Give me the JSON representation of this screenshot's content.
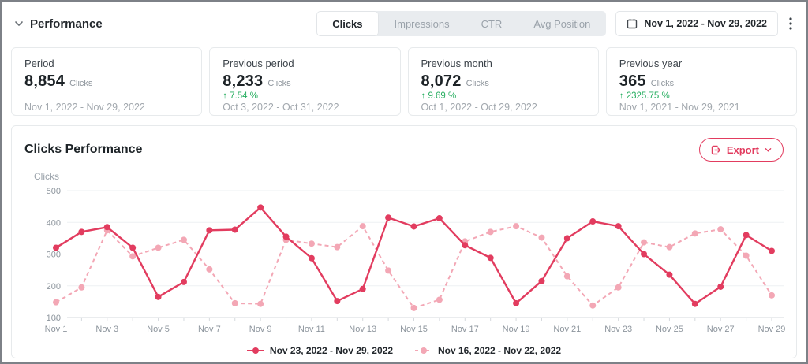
{
  "header": {
    "title": "Performance",
    "tabs": [
      {
        "label": "Clicks",
        "active": true
      },
      {
        "label": "Impressions",
        "active": false
      },
      {
        "label": "CTR",
        "active": false
      },
      {
        "label": "Avg Position",
        "active": false
      }
    ],
    "date_range": "Nov 1, 2022 - Nov 29, 2022"
  },
  "stats": {
    "cards": [
      {
        "label": "Period",
        "value": "8,854",
        "unit": "Clicks",
        "change": "",
        "date_range": "Nov 1, 2022 - Nov 29, 2022"
      },
      {
        "label": "Previous period",
        "value": "8,233",
        "unit": "Clicks",
        "change": "↑ 7.54 %",
        "date_range": "Oct 3, 2022 - Oct 31, 2022"
      },
      {
        "label": "Previous month",
        "value": "8,072",
        "unit": "Clicks",
        "change": "↑ 9.69 %",
        "date_range": "Oct 1, 2022 - Oct 29, 2022"
      },
      {
        "label": "Previous year",
        "value": "365",
        "unit": "Clicks",
        "change": "↑ 2325.75 %",
        "date_range": "Nov 1, 2021 - Nov 29, 2021"
      }
    ]
  },
  "chart_section": {
    "title": "Clicks Performance",
    "export_label": "Export",
    "axis_title": "Clicks"
  },
  "colors": {
    "accent_red": "#e23c5f",
    "light_pink": "#f3a7b5",
    "positive_green": "#27ae60"
  },
  "chart_data": {
    "type": "line",
    "title": "Clicks Performance",
    "ylabel": "Clicks",
    "xlabel": "",
    "ylim": [
      100,
      500
    ],
    "yticks": [
      100,
      200,
      300,
      400,
      500
    ],
    "grid": true,
    "legend_position": "bottom",
    "x": [
      "Nov 1",
      "Nov 2",
      "Nov 3",
      "Nov 4",
      "Nov 5",
      "Nov 6",
      "Nov 7",
      "Nov 8",
      "Nov 9",
      "Nov 10",
      "Nov 11",
      "Nov 12",
      "Nov 13",
      "Nov 14",
      "Nov 15",
      "Nov 16",
      "Nov 17",
      "Nov 18",
      "Nov 19",
      "Nov 20",
      "Nov 21",
      "Nov 22",
      "Nov 23",
      "Nov 24",
      "Nov 25",
      "Nov 26",
      "Nov 27",
      "Nov 28",
      "Nov 29"
    ],
    "series": [
      {
        "name": "Nov 23, 2022 - Nov 29, 2022",
        "style": "solid",
        "color": "#e23c5f",
        "values": [
          320,
          370,
          385,
          320,
          165,
          212,
          375,
          377,
          447,
          355,
          287,
          152,
          190,
          415,
          387,
          413,
          328,
          288,
          145,
          215,
          350,
          403,
          388,
          300,
          235,
          143,
          197,
          360,
          310
        ]
      },
      {
        "name": "Nov 16, 2022 - Nov 22, 2022",
        "style": "dashed",
        "color": "#f3a7b5",
        "values": [
          148,
          195,
          375,
          293,
          320,
          345,
          252,
          145,
          143,
          345,
          333,
          322,
          388,
          248,
          130,
          156,
          340,
          370,
          388,
          352,
          230,
          138,
          195,
          337,
          322,
          365,
          378,
          295,
          170
        ]
      }
    ]
  }
}
